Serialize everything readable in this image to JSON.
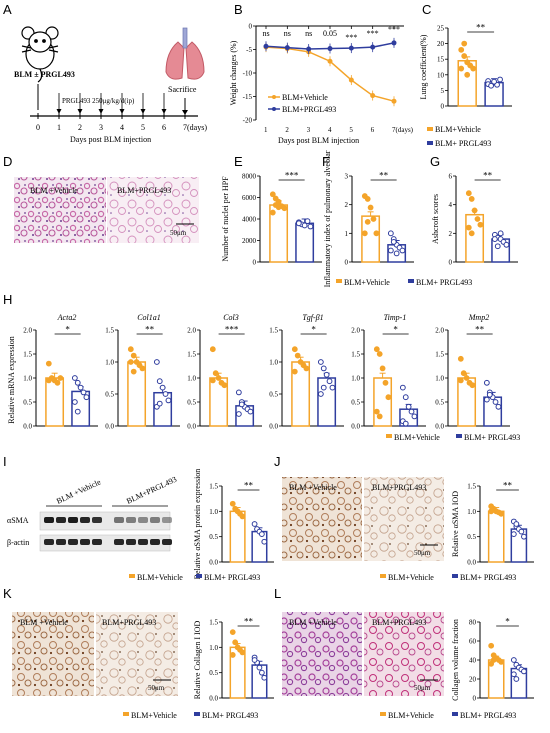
{
  "colors": {
    "vehicle": "#F4A42A",
    "prgl": "#2F3D9E",
    "tissue_bg": "#F2E6EE",
    "tissue_he": "#C76AA8",
    "tissue_ihc": "#9C5A2C"
  },
  "panel_letters": [
    "A",
    "B",
    "C",
    "D",
    "E",
    "F",
    "G",
    "H",
    "I",
    "J",
    "K",
    "L"
  ],
  "legend": {
    "vehicle": "BLM+Vehicle",
    "prgl": "BLM+ PRGL493",
    "vehicle_b": "BLM+Vehicle",
    "prgl_b": "BLM+PRGL493"
  },
  "panelA": {
    "mouse_label": "BLM ± PRGL493",
    "dose": "PRGL493 250μg/kg/d(ip)",
    "sacrifice": "Sacrifice",
    "ticks": [
      "0",
      "1",
      "2",
      "3",
      "4",
      "5",
      "6",
      "7(days)"
    ],
    "xlabel": "Days post BLM injection"
  },
  "panelB": {
    "sig": [
      "ns",
      "ns",
      "ns",
      "0.05",
      "***",
      "***",
      "***"
    ]
  },
  "panelD": {
    "left": "BLM +Vehicle",
    "right": "BLM+PRGL493",
    "scale": "50μm"
  },
  "panelH_titles": [
    "Acta2",
    "Col1a1",
    "Col3",
    "Tgf-β1",
    "Timp-1",
    "Mmp2"
  ],
  "panelH_ylabel": "Relative mRNA expression",
  "panelI": {
    "lane_v": "BLM +Vehicle",
    "lane_p": "BLM+PRGL493",
    "band1": "αSMA",
    "band2": "β-actin"
  },
  "panelJ": {
    "left": "BLM +Vehicle",
    "right": "BLM+PRGL493",
    "scale": "50μm"
  },
  "panelK": {
    "left": "BLM +Vehicle",
    "right": "BLM+PRGL493",
    "scale": "50μm"
  },
  "panelL": {
    "left": "BLM +Vehicle",
    "right": "BLM+PRGL493",
    "scale": "50μm"
  },
  "chart_data": [
    {
      "id": "B",
      "type": "line",
      "xlabel": "Days post BLM injection",
      "ylabel": "Weight changes (%)",
      "x": [
        1,
        2,
        3,
        4,
        5,
        6,
        7
      ],
      "xticks": [
        "1",
        "2",
        "3",
        "4",
        "5",
        "6",
        "7(days)"
      ],
      "ylim": [
        -20,
        0
      ],
      "yticks": [
        0,
        -5,
        -10,
        -15,
        -20
      ],
      "series": [
        {
          "name": "BLM+Vehicle",
          "values": [
            -4.5,
            -4.8,
            -5.5,
            -7.5,
            -11.5,
            -14.8,
            -16
          ]
        },
        {
          "name": "BLM+PRGL493",
          "values": [
            -4.3,
            -4.6,
            -4.9,
            -4.8,
            -4.7,
            -4.5,
            -3.6
          ]
        }
      ]
    },
    {
      "id": "C",
      "type": "bar",
      "ylabel": "Lung coefficient(%)",
      "ylim": [
        0,
        25
      ],
      "yticks": [
        0,
        5,
        10,
        15,
        20,
        25
      ],
      "sig": "**",
      "values": [
        14.5,
        7.5
      ],
      "points": [
        [
          18,
          16,
          14,
          13,
          12,
          12,
          20,
          10
        ],
        [
          8,
          7,
          7.5,
          6.8,
          8.5,
          7,
          6.5,
          7.8
        ]
      ]
    },
    {
      "id": "E",
      "type": "bar",
      "ylabel": "Number of nuclei per HPF",
      "ylim": [
        0,
        8000
      ],
      "yticks": [
        0,
        2000,
        4000,
        6000,
        8000
      ],
      "sig": "***",
      "values": [
        5300,
        3600
      ],
      "points": [
        [
          6300,
          5900,
          5600,
          5200,
          5000,
          4600,
          5300,
          5100
        ],
        [
          3700,
          3500,
          3400,
          3800,
          3300,
          3600
        ]
      ]
    },
    {
      "id": "F",
      "type": "bar",
      "ylabel": "Inflammatory index of pulmonary alveolar",
      "ylim": [
        0,
        3
      ],
      "yticks": [
        0,
        1,
        2,
        3
      ],
      "sig": "**",
      "values": [
        1.6,
        0.6
      ],
      "points": [
        [
          2.3,
          2.2,
          1.9,
          1.5,
          1.0,
          1.0,
          1.4
        ],
        [
          1.0,
          0.8,
          0.6,
          0.5,
          0.4,
          0.4,
          0.7,
          0.3
        ]
      ]
    },
    {
      "id": "G",
      "type": "bar",
      "ylabel": "Ashcroft scores",
      "ylim": [
        0,
        6
      ],
      "yticks": [
        0,
        2,
        4,
        6
      ],
      "sig": "**",
      "values": [
        3.3,
        1.6
      ],
      "points": [
        [
          4.8,
          4.4,
          3.6,
          3.0,
          2.6,
          2.4,
          2.0
        ],
        [
          1.9,
          1.7,
          1.6,
          1.4,
          1.2,
          1.6,
          1.1,
          2.0
        ]
      ]
    },
    {
      "id": "H1",
      "type": "bar",
      "title": "Acta2",
      "ylim": [
        0,
        2.0
      ],
      "yticks": [
        0.0,
        0.5,
        1.0,
        1.5,
        2.0
      ],
      "sig": "*",
      "values": [
        1.0,
        0.72
      ],
      "points": [
        [
          1.3,
          1.0,
          0.95,
          0.9,
          1.0,
          0.95
        ],
        [
          1.0,
          0.9,
          0.8,
          0.7,
          0.6,
          0.5,
          0.3
        ]
      ]
    },
    {
      "id": "H2",
      "type": "bar",
      "title": "Col1a1",
      "ylim": [
        0,
        1.5
      ],
      "yticks": [
        0.0,
        0.5,
        1.0,
        1.5
      ],
      "sig": "**",
      "values": [
        1.0,
        0.52
      ],
      "points": [
        [
          1.2,
          1.1,
          1.0,
          0.95,
          0.9,
          1.0,
          0.85
        ],
        [
          1.0,
          0.7,
          0.6,
          0.5,
          0.4,
          0.3,
          0.35
        ]
      ]
    },
    {
      "id": "H3",
      "type": "bar",
      "title": "Col3",
      "ylim": [
        0,
        2.0
      ],
      "yticks": [
        0.0,
        0.5,
        1.0,
        1.5,
        2.0
      ],
      "sig": "***",
      "values": [
        1.0,
        0.42
      ],
      "points": [
        [
          1.6,
          1.1,
          1.0,
          0.9,
          0.85,
          0.95
        ],
        [
          0.7,
          0.5,
          0.4,
          0.35,
          0.3,
          0.25,
          0.45
        ]
      ]
    },
    {
      "id": "H4",
      "type": "bar",
      "title": "Tgf-β1",
      "ylim": [
        0,
        1.5
      ],
      "yticks": [
        0.0,
        0.5,
        1.0,
        1.5
      ],
      "sig": "*",
      "values": [
        1.0,
        0.75
      ],
      "points": [
        [
          1.2,
          1.1,
          1.0,
          0.95,
          0.9,
          0.85
        ],
        [
          1.0,
          0.9,
          0.8,
          0.7,
          0.6,
          0.5,
          0.6
        ]
      ]
    },
    {
      "id": "H5",
      "type": "bar",
      "title": "Timp-1",
      "ylim": [
        0,
        2.0
      ],
      "yticks": [
        0.0,
        0.5,
        1.0,
        1.5,
        2.0
      ],
      "sig": "*",
      "values": [
        1.0,
        0.35
      ],
      "points": [
        [
          1.6,
          1.5,
          1.2,
          0.9,
          0.6,
          0.3,
          0.2
        ],
        [
          0.8,
          0.6,
          0.4,
          0.3,
          0.2,
          0.1,
          0.05
        ]
      ]
    },
    {
      "id": "H6",
      "type": "bar",
      "title": "Mmp2",
      "ylim": [
        0,
        2.0
      ],
      "yticks": [
        0.0,
        0.5,
        1.0,
        1.5,
        2.0
      ],
      "sig": "**",
      "values": [
        1.0,
        0.6
      ],
      "points": [
        [
          1.4,
          1.1,
          1.0,
          0.9,
          0.85,
          0.95
        ],
        [
          0.9,
          0.7,
          0.6,
          0.5,
          0.4,
          0.55,
          0.65
        ]
      ]
    },
    {
      "id": "I",
      "type": "bar",
      "ylabel": "Relative αSMA protein expression",
      "ylim": [
        0,
        1.5
      ],
      "yticks": [
        0.0,
        0.5,
        1.0,
        1.5
      ],
      "sig": "**",
      "values": [
        1.0,
        0.6
      ],
      "points": [
        [
          1.15,
          1.05,
          1.0,
          0.95,
          0.9
        ],
        [
          0.75,
          0.65,
          0.6,
          0.55,
          0.4
        ]
      ]
    },
    {
      "id": "J",
      "type": "bar",
      "ylabel": "Relative αSMA IOD",
      "ylim": [
        0,
        1.5
      ],
      "yticks": [
        0.0,
        0.5,
        1.0,
        1.5
      ],
      "sig": "**",
      "values": [
        1.0,
        0.65
      ],
      "points": [
        [
          1.1,
          1.05,
          1.0,
          0.98,
          0.95,
          1.0
        ],
        [
          0.8,
          0.7,
          0.65,
          0.6,
          0.5,
          0.55,
          0.75
        ]
      ]
    },
    {
      "id": "K",
      "type": "bar",
      "ylabel": "Relative Collagen I IOD",
      "ylim": [
        0,
        1.5
      ],
      "yticks": [
        0.0,
        0.5,
        1.0,
        1.5
      ],
      "sig": "**",
      "values": [
        1.0,
        0.65
      ],
      "points": [
        [
          1.3,
          1.1,
          1.0,
          0.95,
          0.9,
          0.85
        ],
        [
          0.8,
          0.7,
          0.6,
          0.5,
          0.4,
          0.75
        ]
      ]
    },
    {
      "id": "L",
      "type": "bar",
      "ylabel": "Collagen volume fraction",
      "ylim": [
        0,
        80
      ],
      "yticks": [
        0,
        20,
        40,
        60,
        80
      ],
      "sig": "*",
      "values": [
        40,
        31
      ],
      "points": [
        [
          55,
          45,
          42,
          40,
          38,
          36,
          40
        ],
        [
          40,
          35,
          32,
          30,
          28,
          25,
          20
        ]
      ]
    }
  ]
}
